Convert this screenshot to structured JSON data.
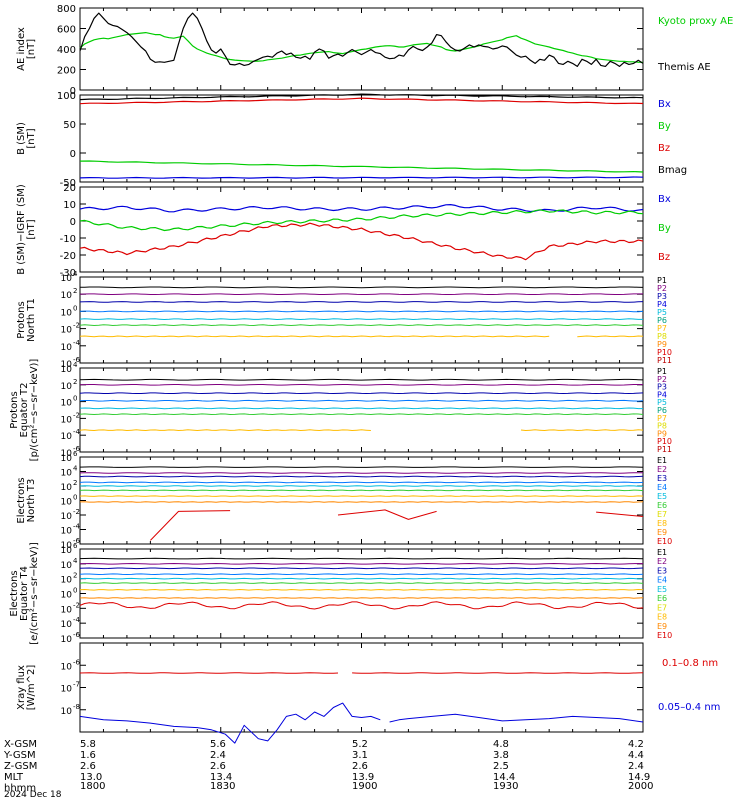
{
  "colors": {
    "black": "#000000",
    "green": "#00cc00",
    "red": "#dd0000",
    "blue": "#0000dd",
    "purple": "#800080",
    "navy": "#0000aa",
    "dodger": "#0077ff",
    "cyan": "#00bbdd",
    "teal": "#00a080",
    "lime": "#33cc33",
    "yellow": "#dddd00",
    "gold": "#ffbb00",
    "orange": "#ff8800",
    "darkred": "#bb0000"
  },
  "chart_data": [
    {
      "type": "line",
      "id": "ae",
      "ylabel": "AE index [nT]",
      "ylim": [
        0,
        800
      ],
      "yticks": [
        "0",
        "200",
        "400",
        "600",
        "800"
      ],
      "x": [
        0,
        1,
        2,
        3,
        4,
        5,
        6,
        7,
        8,
        9,
        10,
        11,
        12,
        13,
        14,
        15,
        16,
        17,
        18,
        19,
        20,
        21,
        22,
        23,
        24,
        25,
        26,
        27,
        28,
        29,
        30,
        31,
        32,
        33,
        34,
        35,
        36,
        37,
        38,
        39,
        40,
        41,
        42,
        43,
        44,
        45,
        46,
        47,
        48,
        49,
        50,
        51,
        52,
        53,
        54,
        55,
        56,
        57,
        58,
        59,
        60,
        61,
        62,
        63,
        64,
        65,
        66,
        67,
        68,
        69,
        70,
        71,
        72,
        73,
        74,
        75,
        76,
        77,
        78,
        79,
        80,
        81,
        82,
        83,
        84,
        85,
        86,
        87,
        88,
        89,
        90,
        91,
        92,
        93,
        94,
        95,
        96,
        97,
        98,
        99,
        100,
        101,
        102,
        103,
        104,
        105,
        106,
        107,
        108,
        109,
        110,
        111,
        112,
        113,
        114,
        115,
        116,
        117,
        118,
        119,
        120
      ],
      "series": [
        {
          "name": "Kyoto proxy AE",
          "color": "green",
          "values": [
            410,
            450,
            470,
            490,
            500,
            505,
            500,
            510,
            520,
            530,
            540,
            545,
            550,
            555,
            560,
            550,
            540,
            540,
            520,
            510,
            505,
            515,
            525,
            480,
            430,
            400,
            380,
            360,
            345,
            335,
            320,
            305,
            298,
            292,
            288,
            285,
            283,
            280,
            282,
            285,
            295,
            300,
            305,
            310,
            320,
            330,
            338,
            340,
            350,
            358,
            363,
            368,
            372,
            375,
            365,
            360,
            355,
            365,
            375,
            385,
            395,
            400,
            410,
            420,
            425,
            430,
            432,
            428,
            420,
            420,
            430,
            440,
            445,
            450,
            455,
            440,
            430,
            420,
            395,
            385,
            380,
            390,
            400,
            410,
            420,
            430,
            450,
            460,
            470,
            480,
            490,
            510,
            520,
            530,
            505,
            490,
            470,
            450,
            440,
            430,
            420,
            405,
            395,
            385,
            370,
            360,
            345,
            335,
            330,
            320,
            305,
            300,
            295,
            290,
            285,
            280,
            280,
            275,
            275,
            270,
            270
          ]
        },
        {
          "name": "Themis AE",
          "color": "black",
          "values": [
            380,
            520,
            600,
            700,
            750,
            700,
            650,
            630,
            620,
            590,
            560,
            520,
            470,
            420,
            380,
            300,
            270,
            275,
            270,
            280,
            290,
            450,
            600,
            700,
            750,
            700,
            600,
            480,
            390,
            360,
            400,
            330,
            250,
            245,
            260,
            240,
            250,
            280,
            300,
            320,
            330,
            320,
            360,
            380,
            345,
            360,
            320,
            310,
            330,
            300,
            370,
            400,
            380,
            310,
            335,
            350,
            330,
            365,
            395,
            370,
            345,
            370,
            395,
            365,
            355,
            320,
            305,
            310,
            340,
            330,
            390,
            425,
            400,
            385,
            420,
            460,
            540,
            530,
            470,
            420,
            390,
            380,
            410,
            440,
            420,
            440,
            425,
            420,
            400,
            410,
            430,
            420,
            380,
            340,
            320,
            330,
            290,
            260,
            300,
            290,
            340,
            320,
            260,
            250,
            280,
            260,
            230,
            300,
            280,
            250,
            300,
            240,
            230,
            280,
            260,
            230,
            270,
            250,
            260,
            290,
            260
          ]
        }
      ]
    },
    {
      "type": "line",
      "id": "bsm",
      "ylabel": "B (SM) [nT]",
      "ylim": [
        -50,
        100
      ],
      "yticks": [
        "-50",
        "0",
        "50",
        "100"
      ],
      "series": [
        {
          "name": "Bx",
          "color": "blue",
          "x": [
            0,
            120
          ],
          "values": [
            -43,
            -42
          ]
        },
        {
          "name": "By",
          "color": "green",
          "x": [
            0,
            120
          ],
          "values": [
            -14,
            -33
          ]
        },
        {
          "name": "Bz",
          "color": "red",
          "x": [
            0,
            60,
            120
          ],
          "values": [
            85,
            94,
            85
          ]
        },
        {
          "name": "Bmag",
          "color": "black",
          "x": [
            0,
            60,
            120
          ],
          "values": [
            92,
            101,
            95
          ]
        }
      ]
    },
    {
      "type": "line",
      "id": "bigrf",
      "ylabel": "B (SM)-IGRF (SM) [nT]",
      "ylim": [
        -30,
        20
      ],
      "yticks": [
        "-30",
        "-20",
        "-10",
        "0",
        "10",
        "20"
      ],
      "series": [
        {
          "name": "Bx",
          "color": "blue",
          "x": [
            0,
            10,
            20,
            30,
            40,
            50,
            60,
            70,
            80,
            90,
            100,
            110,
            120
          ],
          "values": [
            7,
            8,
            6,
            7,
            8,
            7,
            7,
            8,
            9,
            7,
            6,
            8,
            6
          ]
        },
        {
          "name": "By",
          "color": "green",
          "x": [
            0,
            10,
            20,
            30,
            40,
            50,
            60,
            70,
            80,
            90,
            100,
            110,
            120
          ],
          "values": [
            0,
            -4,
            -5,
            -3,
            -1,
            0,
            1,
            3,
            4,
            5,
            6,
            5,
            5
          ]
        },
        {
          "name": "Bz",
          "color": "red",
          "x": [
            0,
            10,
            20,
            30,
            40,
            50,
            60,
            70,
            80,
            90,
            95,
            100,
            110,
            120
          ],
          "values": [
            -16,
            -19,
            -15,
            -9,
            -3,
            -2,
            -5,
            -10,
            -16,
            -21,
            -22,
            -15,
            -12,
            -12
          ]
        }
      ]
    },
    {
      "type": "line",
      "id": "pn1",
      "ylabel": "Protons North T1",
      "yscale": "log",
      "ylim": [
        1e-06,
        10000.0
      ],
      "ytick_exponents": [
        4,
        2,
        0,
        -2,
        -4,
        -6
      ],
      "labels": [
        "P1",
        "P2",
        "P3",
        "P4",
        "P5",
        "P6",
        "P7",
        "P8",
        "P9",
        "P10",
        "P11"
      ],
      "colors": [
        "black",
        "purple",
        "purple",
        "navy",
        "dodger",
        "cyan",
        "teal",
        "lime",
        "yellow",
        "gold",
        "orange"
      ],
      "series": [
        {
          "name": "P1",
          "color": "black",
          "log10": 2.8
        },
        {
          "name": "P2",
          "color": "purple",
          "log10": 2.0
        },
        {
          "name": "P3",
          "color": "navy",
          "log10": 1.1
        },
        {
          "name": "P4",
          "color": "dodger",
          "log10": 0.0
        },
        {
          "name": "P5",
          "color": "cyan",
          "log10": -0.9
        },
        {
          "name": "P6",
          "color": "lime",
          "log10": -1.6
        },
        {
          "name": "P7",
          "color": "gold",
          "log10": -2.9,
          "gaps": [
            [
              100,
              106
            ]
          ]
        }
      ]
    },
    {
      "type": "line",
      "id": "pe2",
      "ylabel": "Protons Equator T2 [p/(cm²-s-sr-keV)]",
      "yscale": "log",
      "ylim": [
        1e-06,
        10000.0
      ],
      "ytick_exponents": [
        4,
        2,
        0,
        -2,
        -4,
        -6
      ],
      "labels": [
        "P1",
        "P2",
        "P3",
        "P4",
        "P5",
        "P6",
        "P7",
        "P8",
        "P9",
        "P10",
        "P11"
      ],
      "series": [
        {
          "name": "P1",
          "color": "black",
          "log10": 2.6
        },
        {
          "name": "P2",
          "color": "purple",
          "log10": 2.0
        },
        {
          "name": "P3",
          "color": "navy",
          "log10": 1.0
        },
        {
          "name": "P4",
          "color": "dodger",
          "log10": 0.1
        },
        {
          "name": "P5",
          "color": "cyan",
          "log10": -0.8
        },
        {
          "name": "P6",
          "color": "lime",
          "log10": -1.5
        },
        {
          "name": "P7",
          "color": "gold",
          "log10": -3.4,
          "gaps": [
            [
              62,
              94
            ]
          ]
        }
      ]
    },
    {
      "type": "line",
      "id": "en3",
      "ylabel": "Electrons North T3",
      "yscale": "log",
      "ylim": [
        1e-06,
        1000000.0
      ],
      "ytick_exponents": [
        6,
        4,
        2,
        0,
        -2,
        -4,
        -6
      ],
      "labels": [
        "E1",
        "E2",
        "E3",
        "E4",
        "E5",
        "E6",
        "E7",
        "E8",
        "E9",
        "E10"
      ],
      "series": [
        {
          "name": "E1",
          "color": "black",
          "log10": 4.6
        },
        {
          "name": "E2",
          "color": "purple",
          "log10": 3.8
        },
        {
          "name": "E3",
          "color": "navy",
          "log10": 3.3
        },
        {
          "name": "E4",
          "color": "dodger",
          "log10": 2.5
        },
        {
          "name": "E5",
          "color": "cyan",
          "log10": 2.0
        },
        {
          "name": "E6",
          "color": "lime",
          "log10": 1.4
        },
        {
          "name": "E7",
          "color": "gold",
          "log10": 0.6
        },
        {
          "name": "E8",
          "color": "orange",
          "log10": -0.2
        },
        {
          "name": "E9",
          "color": "red",
          "segments": [
            [
              [
                15,
                -5.5
              ],
              [
                21,
                -1.5
              ],
              [
                32,
                -1.4
              ]
            ],
            [
              [
                55,
                -2.0
              ],
              [
                65,
                -1.3
              ],
              [
                70,
                -2.6
              ],
              [
                76,
                -1.5
              ]
            ],
            [
              [
                110,
                -1.6
              ],
              [
                120,
                -2.2
              ]
            ]
          ]
        }
      ]
    },
    {
      "type": "line",
      "id": "ee4",
      "ylabel": "Electrons Equator T4 [e/(cm²-s-sr-keV)]",
      "yscale": "log",
      "ylim": [
        1e-06,
        1000000.0
      ],
      "ytick_exponents": [
        6,
        4,
        2,
        0,
        -2,
        -4,
        -6
      ],
      "labels": [
        "E1",
        "E2",
        "E3",
        "E4",
        "E5",
        "E6",
        "E7",
        "E8",
        "E9",
        "E10"
      ],
      "series": [
        {
          "name": "E1",
          "color": "black",
          "log10": 4.7
        },
        {
          "name": "E2",
          "color": "purple",
          "log10": 4.0
        },
        {
          "name": "E3",
          "color": "navy",
          "log10": 3.4
        },
        {
          "name": "E4",
          "color": "dodger",
          "log10": 2.6
        },
        {
          "name": "E5",
          "color": "cyan",
          "log10": 2.0
        },
        {
          "name": "E6",
          "color": "lime",
          "log10": 1.4
        },
        {
          "name": "E7",
          "color": "gold",
          "log10": 0.5
        },
        {
          "name": "E8",
          "color": "orange",
          "log10": -0.6
        },
        {
          "name": "E9",
          "color": "red",
          "wavy": true,
          "log10": -1.6
        }
      ]
    },
    {
      "type": "line",
      "id": "xray",
      "ylabel": "Xray flux [W/m^2]",
      "yscale": "log",
      "ylim": [
        1e-09,
        1e-05
      ],
      "ytick_exponents": [
        -6,
        -7,
        -8
      ],
      "series": [
        {
          "name": "0.1-0.8 nm",
          "color": "red",
          "log10": -6.35,
          "gaps": [
            [
              55,
              58
            ],
            [
              61,
              62
            ]
          ]
        },
        {
          "name": "0.05-0.4 nm",
          "color": "blue",
          "x": [
            0,
            5,
            10,
            15,
            20,
            25,
            28,
            31,
            33,
            35,
            38,
            40,
            42,
            44,
            46,
            48,
            50,
            52,
            54,
            56,
            58,
            60,
            62,
            64,
            66,
            68,
            70,
            75,
            80,
            85,
            90,
            95,
            100,
            105,
            110,
            115,
            120
          ],
          "values": [
            -8.3,
            -8.45,
            -8.5,
            -8.6,
            -8.75,
            -8.8,
            -8.9,
            -9.1,
            -9.5,
            -8.7,
            -9.3,
            -9.4,
            -8.9,
            -8.3,
            -8.2,
            -8.45,
            -8.1,
            -8.3,
            -7.9,
            -7.7,
            -8.3,
            -8.35,
            -8.3,
            -8.45,
            -8.55,
            -8.45,
            -8.4,
            -8.3,
            -8.2,
            -8.35,
            -8.5,
            -8.45,
            -8.4,
            -8.3,
            -8.35,
            -8.4,
            -8.55
          ]
        }
      ]
    }
  ],
  "legends": {
    "ae": [
      "Kyoto proxy AE",
      "Themis AE"
    ],
    "bsm": [
      "Bx",
      "By",
      "Bz",
      "Bmag"
    ],
    "bigrf": [
      "Bx",
      "By",
      "Bz"
    ],
    "xray": [
      "0.1–0.8 nm",
      "0.05–0.4 nm"
    ]
  },
  "ylabels": {
    "ae": [
      "AE index",
      "[nT]"
    ],
    "bsm": [
      "B (SM)",
      "[nT]"
    ],
    "bigrf": [
      "B (SM)−IGRF (SM)",
      "[nT]"
    ],
    "pn1": [
      "Protons",
      "North T1"
    ],
    "pe2": [
      "Protons",
      "Equator T2",
      "[p/(cm²−s−sr−keV)]"
    ],
    "en3": [
      "Electrons",
      "North T3"
    ],
    "ee4": [
      "Electrons",
      "Equator T4",
      "[e/(cm²−s−sr−keV)]"
    ],
    "xray": [
      "Xray flux",
      "[W/m^2]"
    ]
  },
  "ephemeris": {
    "labels": [
      "X-GSM",
      "Y-GSM",
      "Z-GSM",
      "MLT",
      "hhmm",
      "2024 Dec 18"
    ],
    "columns": [
      [
        "5.8",
        "1.6",
        "2.6",
        "13.0",
        "1800"
      ],
      [
        "5.6",
        "2.4",
        "2.6",
        "13.4",
        "1830"
      ],
      [
        "5.2",
        "3.1",
        "2.6",
        "13.9",
        "1900"
      ],
      [
        "4.8",
        "3.8",
        "2.5",
        "14.4",
        "1930"
      ],
      [
        "4.2",
        "4.4",
        "2.4",
        "14.9",
        "2000"
      ]
    ]
  }
}
